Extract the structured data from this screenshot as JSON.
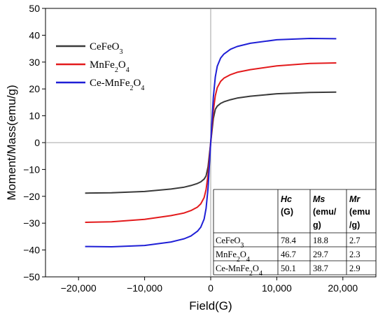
{
  "chart_data": {
    "type": "line",
    "title": "",
    "xlabel": "Field(G)",
    "ylabel": "Moment/Mass(emu/g)",
    "xlim": [
      -25000,
      25000
    ],
    "ylim": [
      -50,
      50
    ],
    "xticks": [
      -20000,
      -10000,
      0,
      10000,
      20000
    ],
    "xtick_labels": [
      "−20,000",
      "−10,000",
      "0",
      "10,000",
      "20,000"
    ],
    "yticks": [
      -50,
      -40,
      -30,
      -20,
      -10,
      0,
      10,
      20,
      30,
      40,
      50
    ],
    "ytick_labels": [
      "−50",
      "−40",
      "−30",
      "−20",
      "−10",
      "0",
      "10",
      "20",
      "30",
      "40",
      "50"
    ],
    "grid": false,
    "legend_position": "top-left",
    "series": [
      {
        "name": "CeFeO",
        "name_sub": "3",
        "name_rest": "",
        "color": "#3a3a3a",
        "x": [
          -19000,
          -15000,
          -10000,
          -6000,
          -4000,
          -3000,
          -2000,
          -1500,
          -1000,
          -700,
          -400,
          -200,
          0,
          200,
          400,
          700,
          1000,
          1500,
          2000,
          3000,
          4000,
          6000,
          10000,
          15000,
          19000
        ],
        "y": [
          -18.8,
          -18.7,
          -18.2,
          -17.3,
          -16.6,
          -16.0,
          -15.2,
          -14.6,
          -13.6,
          -12.4,
          -9.0,
          -4.5,
          0,
          4.5,
          9.0,
          12.4,
          13.6,
          14.6,
          15.2,
          16.0,
          16.6,
          17.3,
          18.2,
          18.7,
          18.8
        ]
      },
      {
        "name": "MnFe",
        "name_sub": "2",
        "name_rest": "O4",
        "color": "#e31a1c",
        "x": [
          -19000,
          -15000,
          -10000,
          -6000,
          -4000,
          -3000,
          -2000,
          -1500,
          -1000,
          -700,
          -400,
          -200,
          0,
          200,
          400,
          700,
          1000,
          1500,
          2000,
          3000,
          4000,
          6000,
          10000,
          15000,
          19000
        ],
        "y": [
          -29.7,
          -29.5,
          -28.6,
          -27.2,
          -26.2,
          -25.3,
          -24.0,
          -22.8,
          -20.5,
          -17.5,
          -12.0,
          -6.0,
          0,
          6.0,
          12.0,
          17.5,
          20.5,
          22.8,
          24.0,
          25.3,
          26.2,
          27.2,
          28.6,
          29.5,
          29.7
        ]
      },
      {
        "name": "Ce-MnFe",
        "name_sub": "2",
        "name_rest": "O4",
        "color": "#1f1fd6",
        "x": [
          -19000,
          -15000,
          -10000,
          -6000,
          -4000,
          -3000,
          -2000,
          -1500,
          -1000,
          -700,
          -400,
          -200,
          0,
          200,
          400,
          700,
          1000,
          1500,
          2000,
          3000,
          4000,
          6000,
          10000,
          15000,
          19000
        ],
        "y": [
          -38.7,
          -38.8,
          -38.3,
          -37.0,
          -35.8,
          -34.8,
          -33.0,
          -31.5,
          -28.5,
          -24.5,
          -17.0,
          -8.5,
          0,
          8.5,
          17.0,
          24.5,
          28.5,
          31.5,
          33.0,
          34.8,
          35.8,
          37.0,
          38.3,
          38.8,
          38.7
        ]
      }
    ],
    "table": {
      "headers": [
        {
          "main": "Hc",
          "sub": "(G)"
        },
        {
          "main": "Ms",
          "sub": "(emu/",
          "sub2": "g)"
        },
        {
          "main": "Mr",
          "sub": "(emu",
          "sub2": "/g)"
        }
      ],
      "rows": [
        {
          "label": "CeFeO",
          "label_sub": "3",
          "label_rest": "",
          "hc": "78.4",
          "ms": "18.8",
          "mr": "2.7"
        },
        {
          "label": "MnFe",
          "label_sub": "2",
          "label_rest": "O4",
          "hc": "46.7",
          "ms": "29.7",
          "mr": "2.3"
        },
        {
          "label": "Ce-MnFe",
          "label_sub": "2",
          "label_rest": "O4",
          "hc": "50.1",
          "ms": "38.7",
          "mr": "2.9"
        }
      ]
    }
  }
}
